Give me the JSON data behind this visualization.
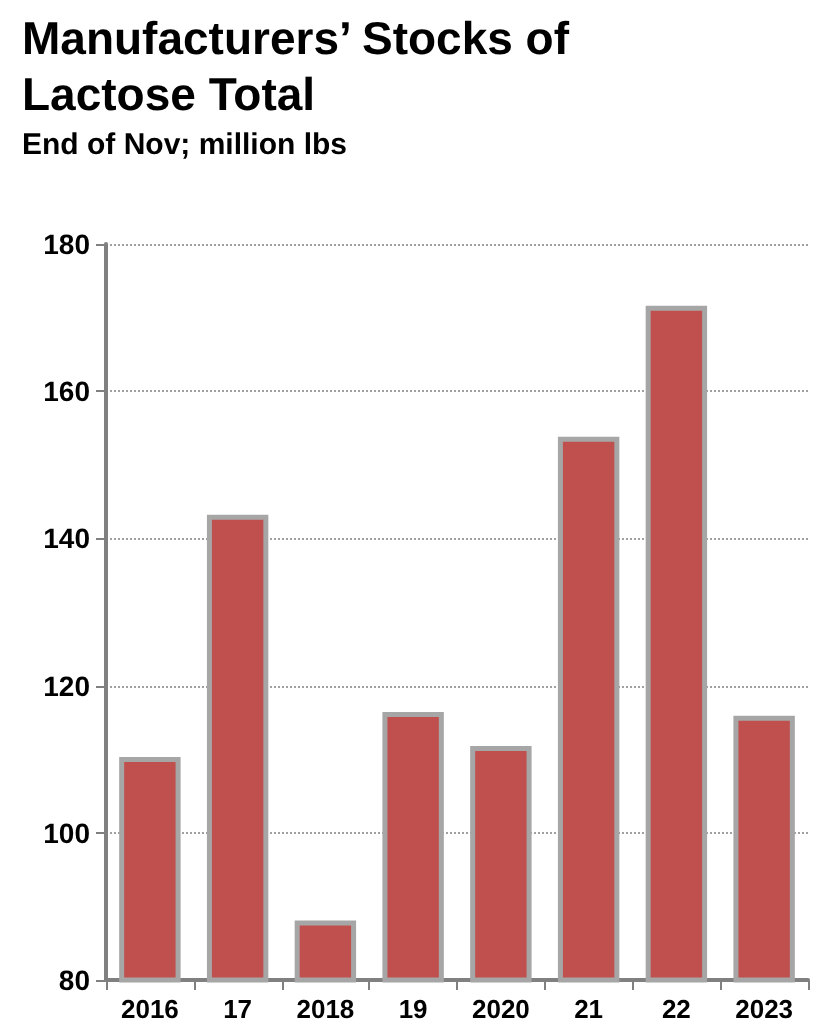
{
  "chart_data": {
    "type": "bar",
    "title": "Manufacturers’ Stocks of Lactose Total",
    "subtitle": "End of Nov; million lbs",
    "categories": [
      "2016",
      "17",
      "2018",
      "19",
      "2020",
      "21",
      "22",
      "2023"
    ],
    "values": [
      110.3,
      143.2,
      88.1,
      116.4,
      111.8,
      153.8,
      171.6,
      115.9
    ],
    "color": "#c0504d",
    "ylim": [
      80,
      180
    ],
    "yticks": [
      80,
      100,
      120,
      140,
      160,
      180
    ],
    "grid": "y",
    "line_style": "dotted"
  }
}
